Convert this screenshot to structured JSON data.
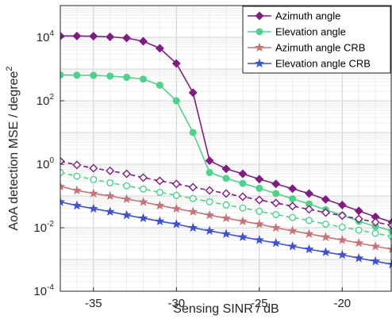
{
  "chart_data": {
    "type": "line",
    "xlabel": "Sensing SINR / dB",
    "ylabel_base": "AoA detection MSE / degree",
    "ylabel_superscript": "2",
    "xlim": [
      -37,
      -17
    ],
    "ylim": [
      0.0001,
      100000
    ],
    "yscale": "log",
    "x_ticks": [
      -35,
      -30,
      -25,
      -20
    ],
    "x_tick_labels": [
      "-35",
      "-30",
      "-25",
      "-20"
    ],
    "y_ticks": [
      0.0001,
      0.01,
      1,
      100,
      10000
    ],
    "y_tick_labels": [
      {
        "base": "10",
        "exp": "-4"
      },
      {
        "base": "10",
        "exp": "-2"
      },
      {
        "base": "10",
        "exp": "0"
      },
      {
        "base": "10",
        "exp": "2"
      },
      {
        "base": "10",
        "exp": "4"
      }
    ],
    "grid": true,
    "minor_grid": true,
    "legend_position": "top-right",
    "x": [
      -37,
      -36,
      -35,
      -34,
      -33,
      -32,
      -31,
      -30,
      -29,
      -28,
      -27,
      -26,
      -25,
      -24,
      -23,
      -22,
      -21,
      -20,
      -19,
      -18,
      -17
    ],
    "series": [
      {
        "name": "Azimuth angle",
        "color": "#7e1e80",
        "marker": "diamond",
        "values": [
          11000,
          11000,
          10800,
          10300,
          9500,
          7500,
          4500,
          1500,
          180,
          1.3,
          0.72,
          0.5,
          0.34,
          0.24,
          0.17,
          0.12,
          0.078,
          0.052,
          0.034,
          0.022,
          0.015
        ]
      },
      {
        "name": "Elevation angle",
        "color": "#4fd18b",
        "marker": "circle",
        "values": [
          650,
          640,
          630,
          600,
          550,
          480,
          310,
          100,
          10,
          0.55,
          0.36,
          0.25,
          0.175,
          0.12,
          0.082,
          0.056,
          0.037,
          0.025,
          0.016,
          0.011,
          0.008
        ]
      },
      {
        "name": "Azimuth angle CRB",
        "color": "#c1777a",
        "marker": "star",
        "values": [
          0.2,
          0.15,
          0.12,
          0.1,
          0.08,
          0.065,
          0.05,
          0.04,
          0.032,
          0.025,
          0.02,
          0.016,
          0.013,
          0.01,
          0.008,
          0.0064,
          0.0051,
          0.0041,
          0.0033,
          0.0026,
          0.0021
        ]
      },
      {
        "name": "Elevation angle CRB",
        "color": "#3f52c9",
        "marker": "star",
        "values": [
          0.065,
          0.05,
          0.04,
          0.032,
          0.025,
          0.02,
          0.016,
          0.013,
          0.01,
          0.008,
          0.0064,
          0.0051,
          0.0041,
          0.0033,
          0.0026,
          0.0021,
          0.0017,
          0.0014,
          0.0011,
          0.00088,
          0.0007
        ]
      },
      {
        "name": "",
        "color": "#7e1e80",
        "marker": "diamond-open",
        "dashed": true,
        "values": [
          1.25,
          0.95,
          0.75,
          0.62,
          0.5,
          0.38,
          0.3,
          0.24,
          0.19,
          0.15,
          0.12,
          0.095,
          0.075,
          0.06,
          0.048,
          0.038,
          0.03,
          0.024,
          0.019,
          0.015,
          0.012
        ]
      },
      {
        "name": "",
        "color": "#4fd18b",
        "marker": "circle-open",
        "dashed": true,
        "values": [
          0.55,
          0.42,
          0.33,
          0.26,
          0.21,
          0.165,
          0.13,
          0.105,
          0.083,
          0.066,
          0.052,
          0.042,
          0.033,
          0.026,
          0.021,
          0.017,
          0.013,
          0.0105,
          0.0084,
          0.0067,
          0.0053
        ]
      }
    ]
  }
}
